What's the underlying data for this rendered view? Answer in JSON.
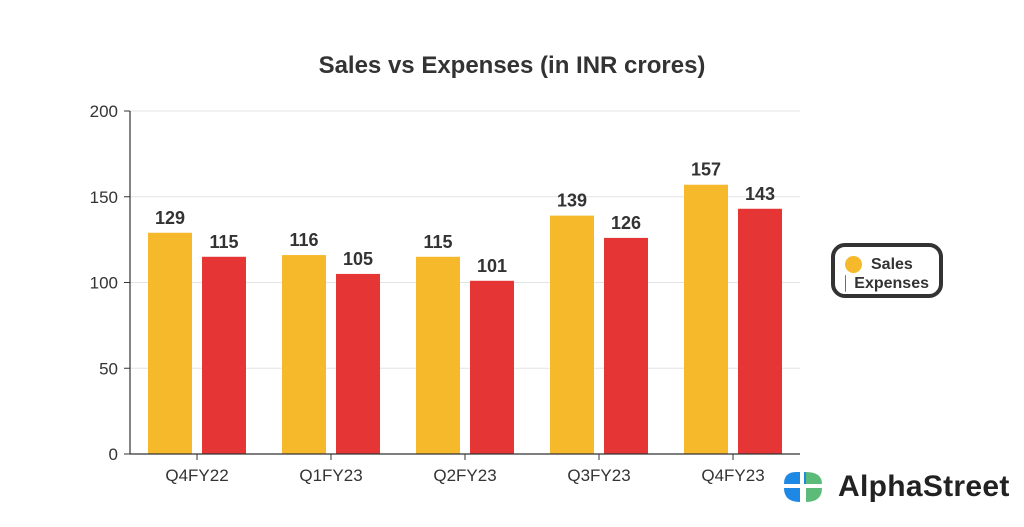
{
  "chart_data": {
    "type": "bar",
    "title": "Sales vs Expenses (in INR crores)",
    "categories": [
      "Q4FY22",
      "Q1FY23",
      "Q2FY23",
      "Q3FY23",
      "Q4FY23"
    ],
    "series": [
      {
        "name": "Sales",
        "color": "#F6B92B",
        "values": [
          129,
          116,
          115,
          139,
          157
        ]
      },
      {
        "name": "Expenses",
        "color": "#E53535",
        "values": [
          115,
          105,
          101,
          126,
          143
        ]
      }
    ],
    "xlabel": "",
    "ylabel": "",
    "ylim": [
      0,
      200
    ],
    "yticks": [
      0,
      50,
      100,
      150,
      200
    ],
    "grid": true,
    "legend_position": "right"
  },
  "brand": {
    "name": "AlphaStreet"
  }
}
